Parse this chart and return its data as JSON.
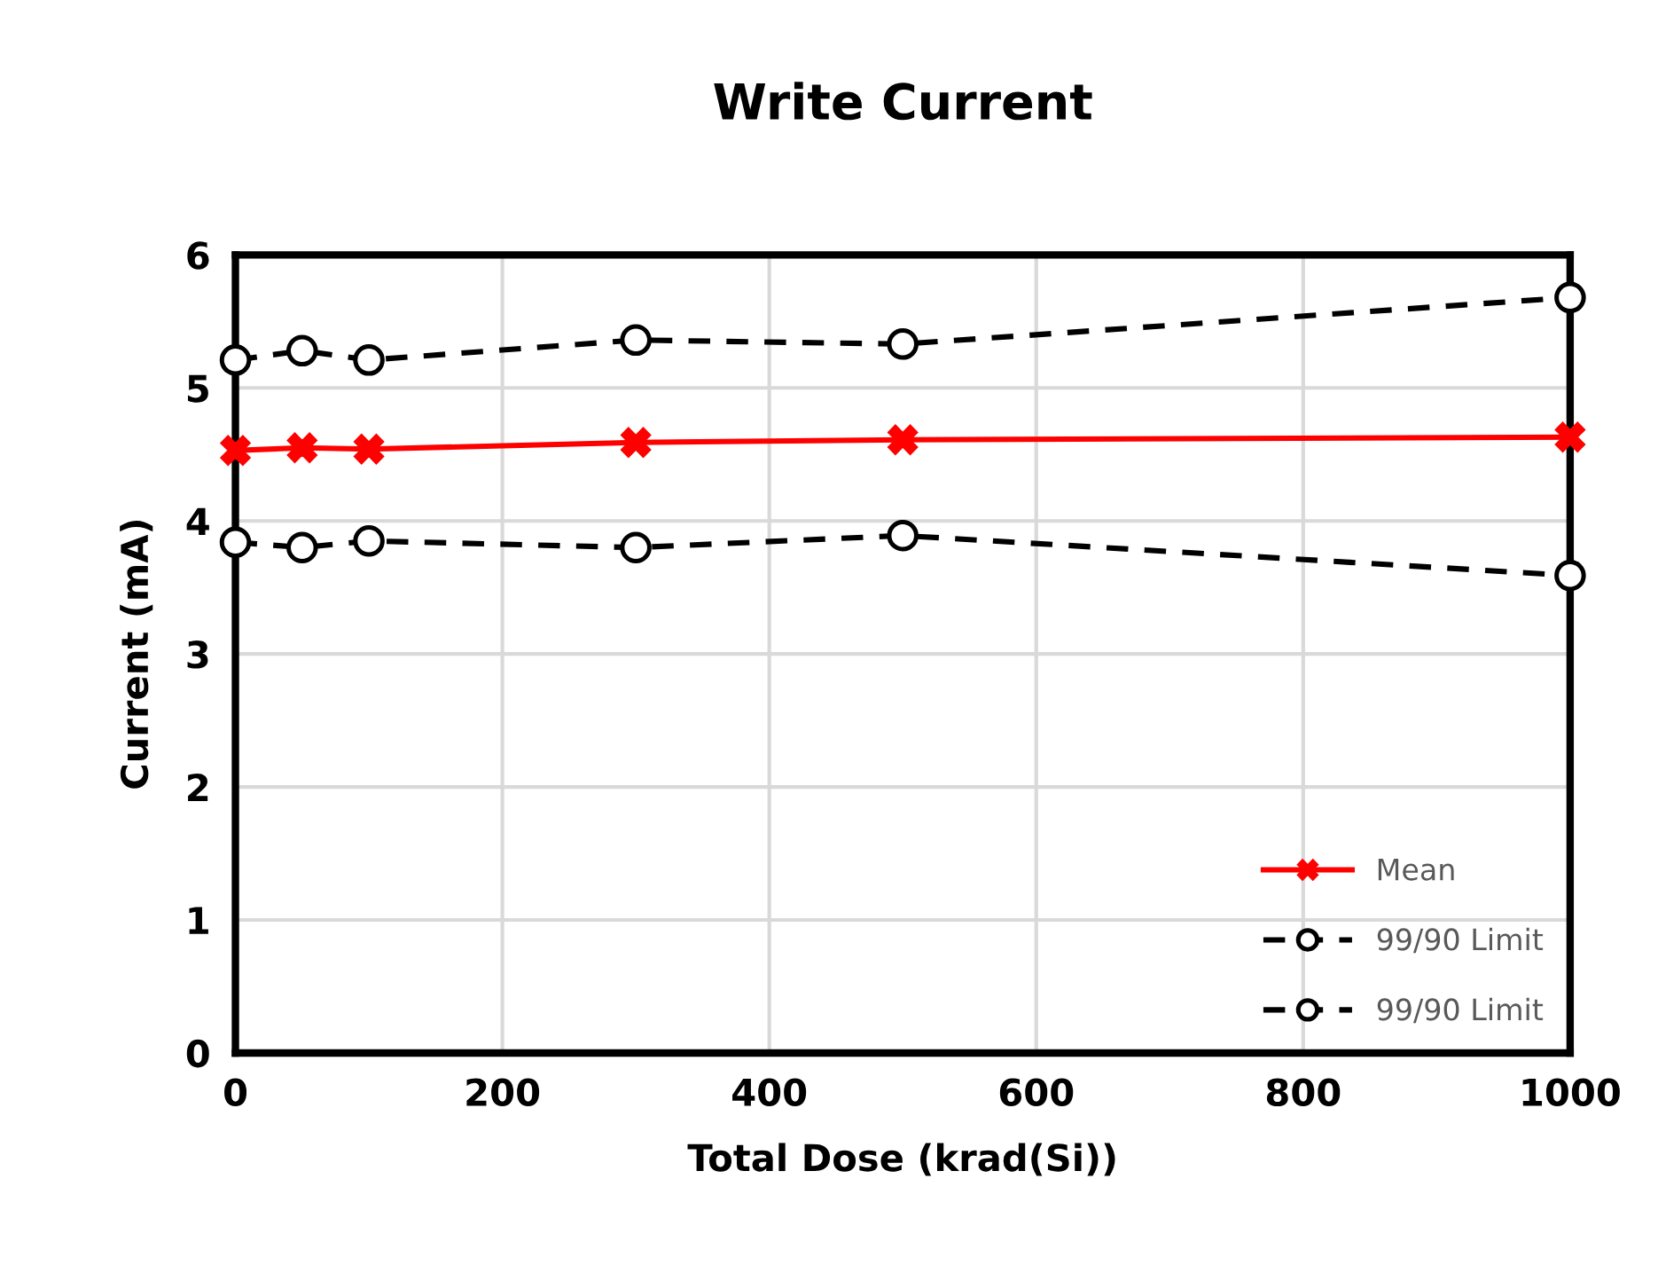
{
  "chart_data": {
    "type": "line",
    "title": "Write Current",
    "xlabel": "Total Dose (krad(Si))",
    "ylabel": "Current (mA)",
    "x": [
      0,
      50,
      100,
      300,
      500,
      1000
    ],
    "xlim": [
      0,
      1000
    ],
    "xticks": [
      0,
      200,
      400,
      600,
      800,
      1000
    ],
    "ylim": [
      0,
      6
    ],
    "yticks": [
      0,
      1,
      2,
      3,
      4,
      5,
      6
    ],
    "grid": true,
    "legend": "right",
    "series": [
      {
        "name": "Mean",
        "color": "#ff0000",
        "marker": "cross",
        "line_style": "solid",
        "values": [
          4.53,
          4.55,
          4.54,
          4.59,
          4.61,
          4.63
        ]
      },
      {
        "name": "99/90 Limit",
        "color": "#000000",
        "marker": "circle",
        "line_style": "dashed",
        "values": [
          5.21,
          5.28,
          5.21,
          5.36,
          5.33,
          5.68
        ]
      },
      {
        "name": "99/90 Limit",
        "color": "#000000",
        "marker": "circle",
        "line_style": "dashed",
        "values": [
          3.84,
          3.8,
          3.85,
          3.8,
          3.89,
          3.59
        ]
      }
    ]
  }
}
